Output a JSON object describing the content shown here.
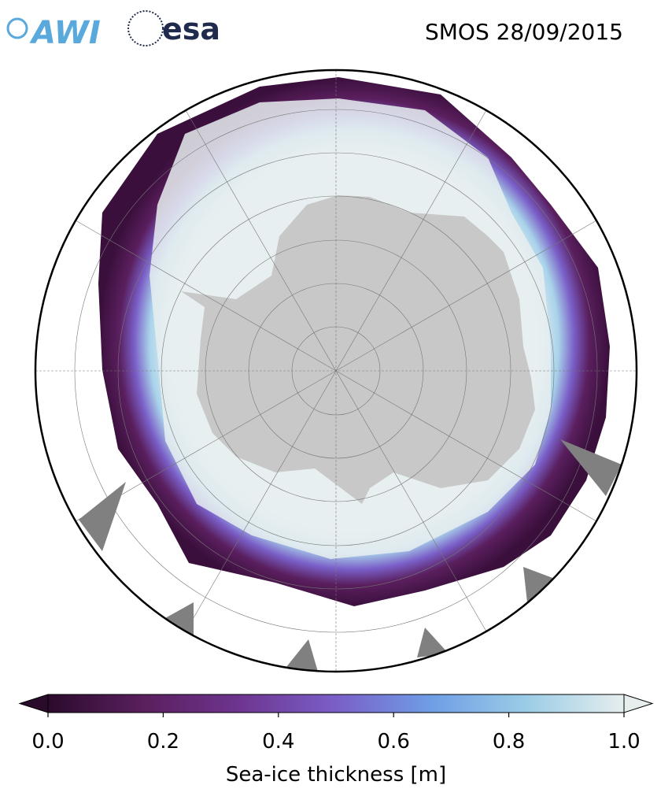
{
  "header": {
    "logos": [
      "AWI",
      "esa"
    ],
    "title": "SMOS 28/09/2015"
  },
  "colorbar": {
    "label": "Sea-ice thickness [m]",
    "lim": [
      0,
      1.0
    ],
    "ticks": [
      {
        "value": 0,
        "label": "0.0"
      },
      {
        "value": 0.2,
        "label": "0.2"
      },
      {
        "value": 0.4,
        "label": "0.4"
      },
      {
        "value": 0.6,
        "label": "0.6"
      },
      {
        "value": 0.8,
        "label": "0.8"
      },
      {
        "value": 1.0,
        "label": "1.0"
      }
    ],
    "colors": [
      "#2b0b2c",
      "#5a1f5e",
      "#6e3590",
      "#7a5fc8",
      "#6f9ee6",
      "#9ccde6",
      "#e6eeee"
    ]
  }
}
